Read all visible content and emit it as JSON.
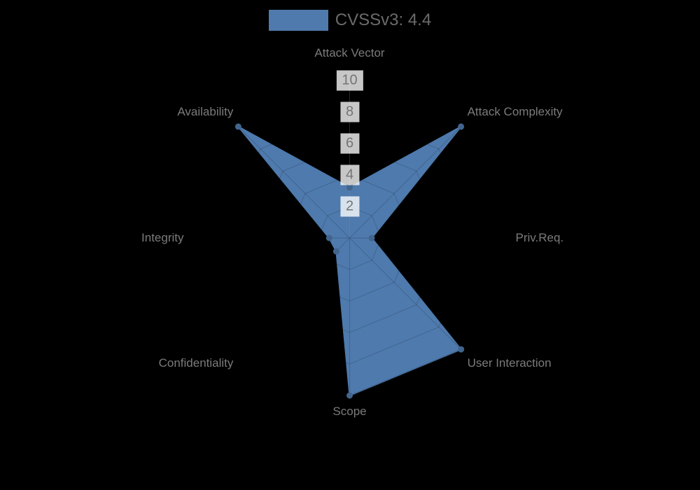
{
  "page": {
    "background_color": "#000000"
  },
  "legend": {
    "label": "CVSSv3: 4.4",
    "swatch_color": "#4F7AAD",
    "text_color": "#6B6B6B"
  },
  "chart_data": {
    "type": "radar",
    "title": "CVSSv3: 4.4",
    "categories": [
      "Attack Vector",
      "Attack Complexity",
      "Priv.Req.",
      "User Interaction",
      "Scope",
      "Confidentiality",
      "Integrity",
      "Availability"
    ],
    "series": [
      {
        "name": "CVSSv3: 4.4",
        "values": [
          3.2,
          10,
          1.4,
          10,
          10,
          1.2,
          1.3,
          10
        ]
      }
    ],
    "scale": {
      "min": 0,
      "max": 10,
      "tick_step": 2,
      "tick_values": [
        2,
        4,
        6,
        8,
        10
      ]
    },
    "legend_position": "top",
    "grid": true,
    "grid_shape": "polygon",
    "colors": {
      "fill": "#4F7AAD",
      "border": "#4D79AC",
      "marker": "#41658D",
      "grid_line": "rgba(0,0,0,0.14)",
      "top_axis_line": "rgba(255,255,255,0.16)",
      "axis_label_text": "#7B7B7B",
      "tick_text": "#757575",
      "tick_backdrop": "rgba(255,255,255,0.78)"
    }
  }
}
